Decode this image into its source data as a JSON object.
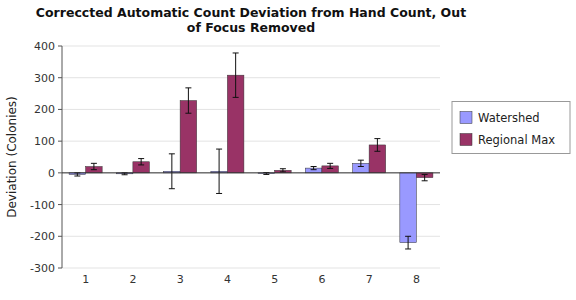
{
  "chart_data": {
    "type": "bar",
    "title": "Correccted Automatic Count Deviation from Hand Count, Out\nof Focus Removed",
    "y_label": "Deviation (Colonies)",
    "categories": [
      "1",
      "2",
      "3",
      "4",
      "5",
      "6",
      "7",
      "8"
    ],
    "series": [
      {
        "name": "Watershed",
        "color": "#9999ff",
        "values": [
          -5,
          -3,
          5,
          5,
          -2,
          15,
          30,
          -220
        ],
        "errors": [
          5,
          3,
          55,
          70,
          3,
          5,
          10,
          20
        ]
      },
      {
        "name": "Regional Max",
        "color": "#993366",
        "values": [
          20,
          35,
          228,
          308,
          8,
          22,
          88,
          -15
        ],
        "errors": [
          10,
          10,
          40,
          70,
          5,
          8,
          20,
          10
        ]
      }
    ],
    "ylim": [
      -300,
      400
    ],
    "yticks": [
      -300,
      -200,
      -100,
      0,
      100,
      200,
      300,
      400
    ],
    "grid": true,
    "legend": "right"
  }
}
